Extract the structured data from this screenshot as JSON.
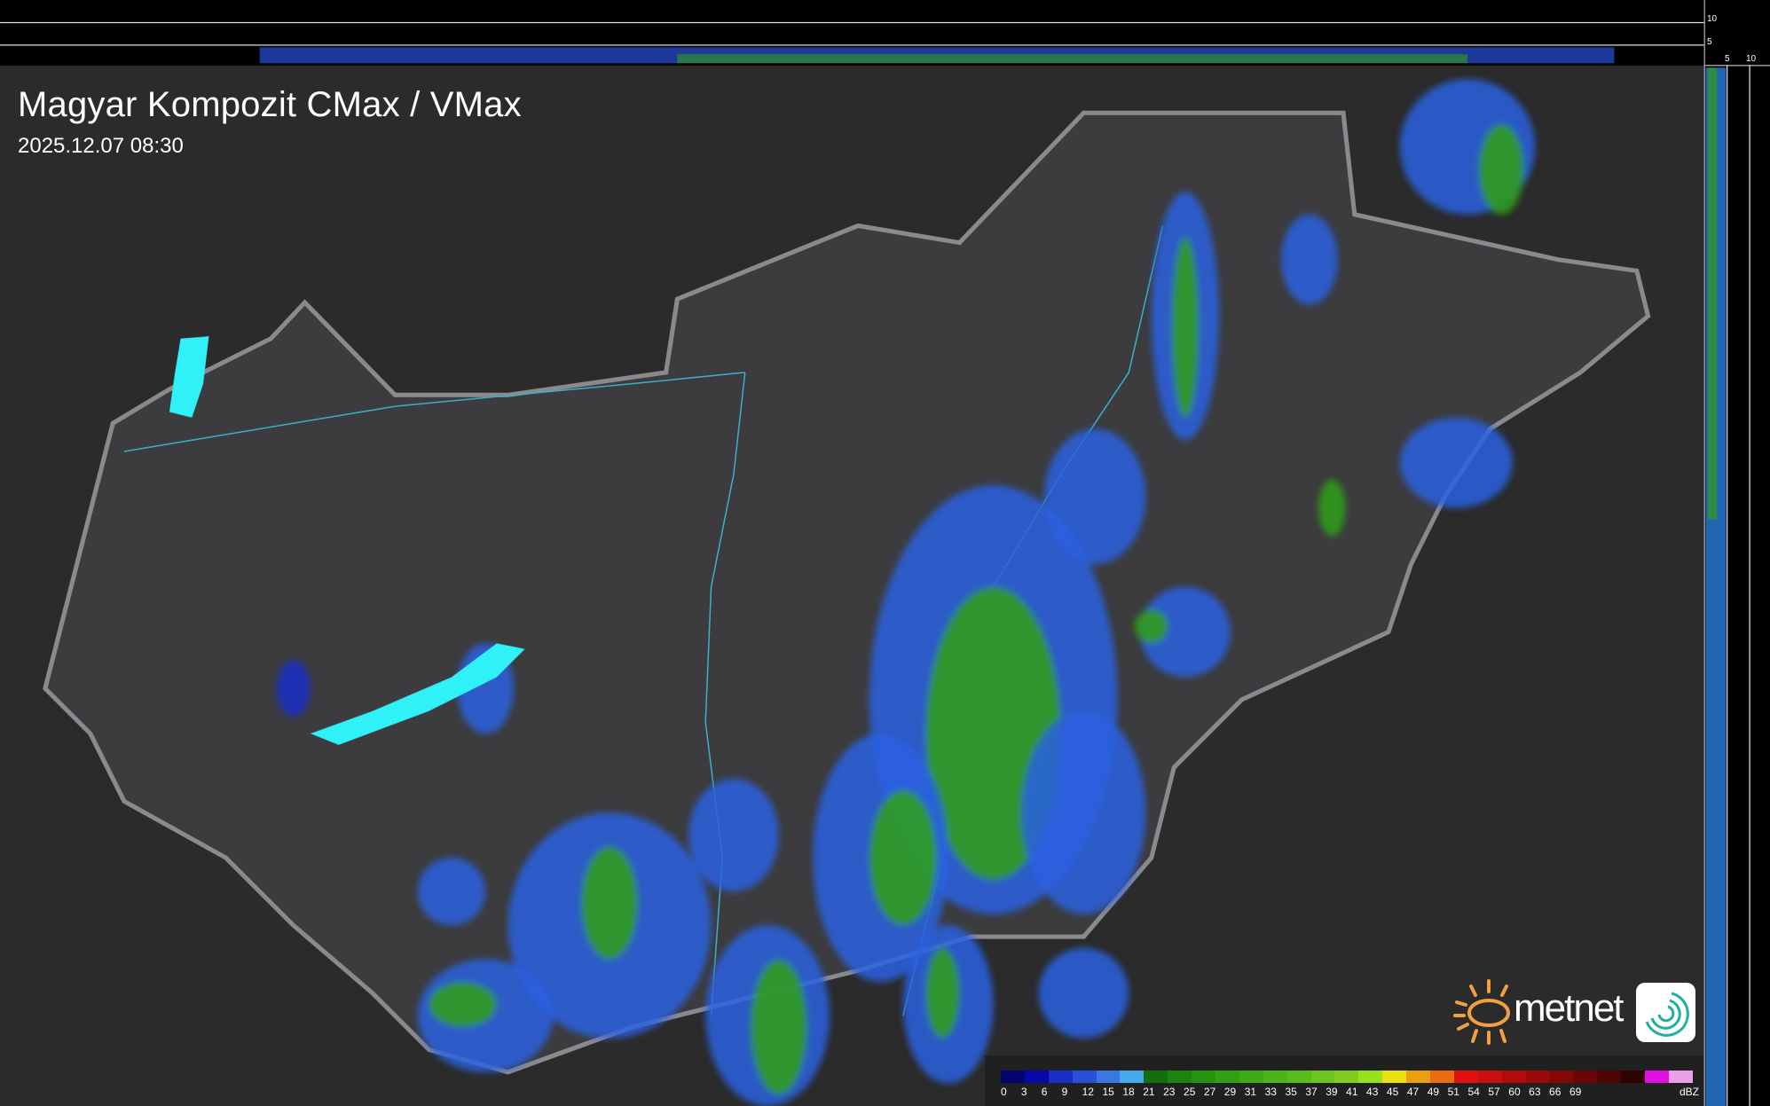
{
  "header": {
    "title": "Magyar Kompozit CMax / VMax",
    "timestamp": "2025.12.07 08:30"
  },
  "profile_axes": {
    "top_ticks": [
      "10",
      "5"
    ],
    "right_ticks": [
      "5",
      "10"
    ]
  },
  "legend": {
    "unit": "dBZ",
    "labels": [
      "0",
      "3",
      "6",
      "9",
      "12",
      "15",
      "18",
      "21",
      "23",
      "25",
      "27",
      "29",
      "31",
      "33",
      "35",
      "37",
      "39",
      "41",
      "43",
      "45",
      "47",
      "49",
      "51",
      "54",
      "57",
      "60",
      "63",
      "66",
      "69"
    ],
    "colors": [
      "#04046e",
      "#0808a8",
      "#1a2fc8",
      "#2a50d8",
      "#3a78e0",
      "#48a8ee",
      "#146e10",
      "#1c8210",
      "#269212",
      "#30a014",
      "#3eaa18",
      "#4cb41a",
      "#58bc1c",
      "#6cc41e",
      "#80cc20",
      "#98e020",
      "#e8e010",
      "#e8a010",
      "#e86c10",
      "#e01010",
      "#c81010",
      "#b00c0c",
      "#9a0a0a",
      "#840808",
      "#6c0606",
      "#4c0404",
      "#2c0404",
      "#e010e0",
      "#e8a0e8",
      "#80e0e8"
    ]
  },
  "branding": {
    "logo_text": "metnet",
    "accent": "#f0a040"
  }
}
